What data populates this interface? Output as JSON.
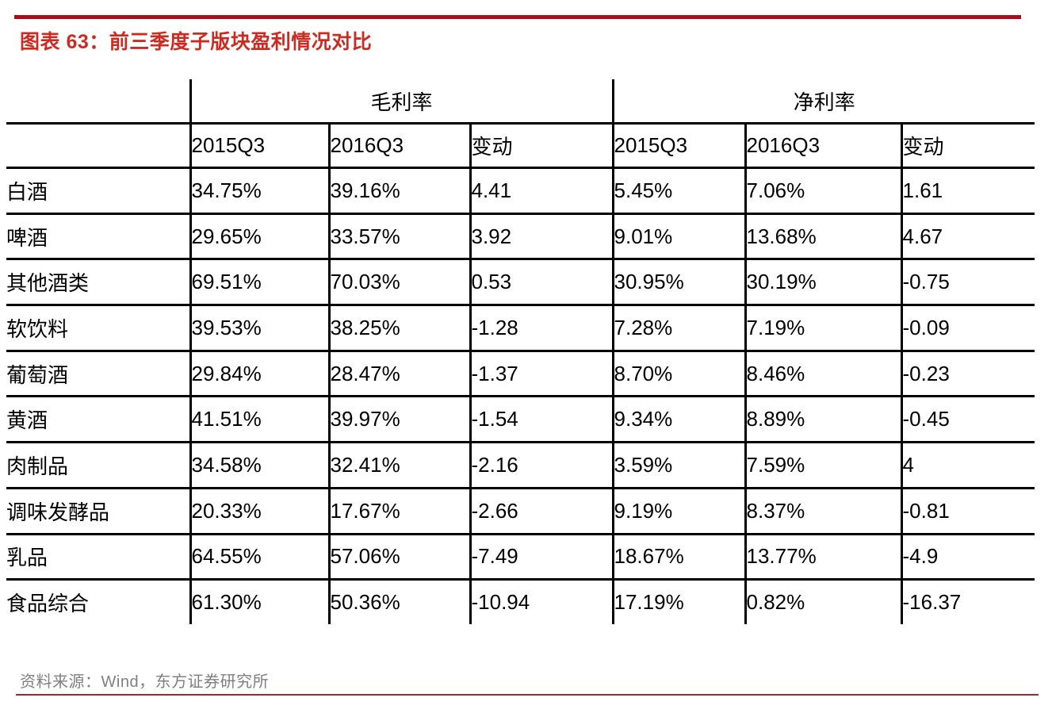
{
  "title": "图表 63：前三季度子版块盈利情况对比",
  "table": {
    "group_headers": {
      "corner": "",
      "gross_margin": "毛利率",
      "net_margin": "净利率"
    },
    "column_headers": [
      "",
      "2015Q3",
      "2016Q3",
      "变动",
      "2015Q3",
      "2016Q3",
      "变动"
    ],
    "rows": [
      {
        "label": "白酒",
        "cells": [
          "34.75%",
          "39.16%",
          "4.41",
          "5.45%",
          "7.06%",
          "1.61"
        ]
      },
      {
        "label": "啤酒",
        "cells": [
          "29.65%",
          "33.57%",
          "3.92",
          "9.01%",
          "13.68%",
          "4.67"
        ]
      },
      {
        "label": "其他酒类",
        "cells": [
          "69.51%",
          "70.03%",
          "0.53",
          "30.95%",
          "30.19%",
          "-0.75"
        ]
      },
      {
        "label": "软饮料",
        "cells": [
          "39.53%",
          "38.25%",
          "-1.28",
          "7.28%",
          "7.19%",
          "-0.09"
        ]
      },
      {
        "label": "葡萄酒",
        "cells": [
          "29.84%",
          "28.47%",
          "-1.37",
          "8.70%",
          "8.46%",
          "-0.23"
        ]
      },
      {
        "label": "黄酒",
        "cells": [
          "41.51%",
          "39.97%",
          "-1.54",
          "9.34%",
          "8.89%",
          "-0.45"
        ]
      },
      {
        "label": "肉制品",
        "cells": [
          "34.58%",
          "32.41%",
          "-2.16",
          "3.59%",
          "7.59%",
          "4"
        ]
      },
      {
        "label": "调味发酵品",
        "cells": [
          "20.33%",
          "17.67%",
          "-2.66",
          "9.19%",
          "8.37%",
          "-0.81"
        ]
      },
      {
        "label": "乳品",
        "cells": [
          "64.55%",
          "57.06%",
          "-7.49",
          "18.67%",
          "13.77%",
          "-4.9"
        ]
      },
      {
        "label": "食品综合",
        "cells": [
          "61.30%",
          "50.36%",
          "-10.94",
          "17.19%",
          "0.82%",
          "-16.37"
        ]
      }
    ]
  },
  "footer": {
    "source_line": "资料来源：Wind，东方证券研究所"
  },
  "colors": {
    "top_bar": "#A70D1A",
    "title_red": "#CC2B21",
    "footer_rule_red": "#9B2D28",
    "footer_text_gray": "#7F7F7F",
    "table_border_black": "#000000"
  }
}
